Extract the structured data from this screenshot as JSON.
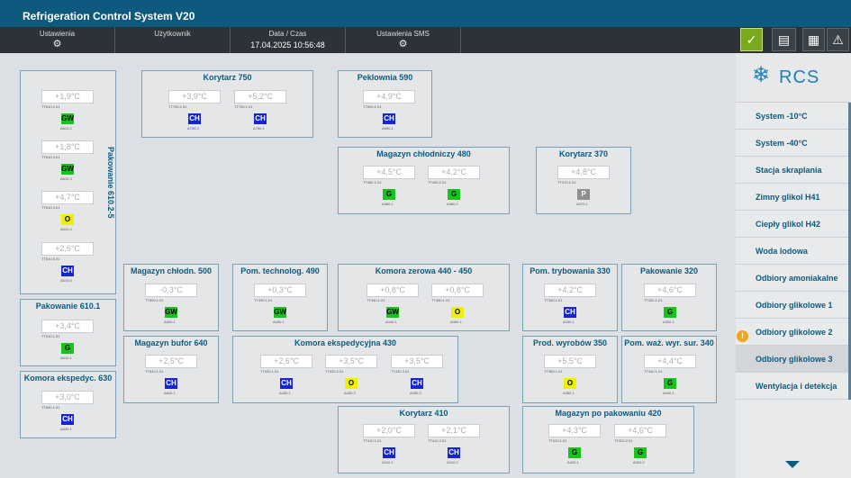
{
  "title": "Refrigeration Control System V20",
  "topbar": {
    "settings_label": "Ustawienia",
    "user_label": "Użytkownik",
    "datetime_label": "Data / Czas",
    "datetime_value": "17.04.2025 10:56:48",
    "sms_label": "Ustawienia SMS"
  },
  "logo_text": "RCS",
  "rooms": [
    {
      "id": "pak6102-5",
      "title": "Pakowanie 610.2-5",
      "readings": [
        {
          "value": "+1,9°C",
          "tag": "TT610.2.01",
          "status": "GW",
          "stag": "A610.2"
        },
        {
          "value": "+1,8°C",
          "tag": "TT610.3.01",
          "status": "GW",
          "stag": "A610.3"
        },
        {
          "value": "+4,7°C",
          "tag": "TT610.4.01",
          "status": "O",
          "stag": "A610.4"
        },
        {
          "value": "+2,6°C",
          "tag": "TT610.5.01",
          "status": "CH",
          "stag": "A610.5"
        }
      ]
    },
    {
      "id": "pak6101",
      "title": "Pakowanie 610.1",
      "readings": [
        {
          "value": "+3,4°C",
          "tag": "TT610.1.01",
          "status": "G",
          "stag": "A610.1"
        }
      ]
    },
    {
      "id": "kom630",
      "title": "Komora ekspedyc. 630",
      "readings": [
        {
          "value": "+3,0°C",
          "tag": "TT630.1.01",
          "status": "CH",
          "stag": "A630.1"
        }
      ]
    },
    {
      "id": "kor750",
      "title": "Korytarz 750",
      "readings": [
        {
          "value": "+3,9°C",
          "tag": "TT750.2.01",
          "status": "CH",
          "stag": "A750.2"
        },
        {
          "value": "+5,2°C",
          "tag": "TT750.1.01",
          "status": "CH",
          "stag": "A750.1"
        }
      ]
    },
    {
      "id": "pek590",
      "title": "Peklownia 590",
      "readings": [
        {
          "value": "+4,9°C",
          "tag": "TT590.1.01",
          "status": "CH",
          "stag": "A590.1"
        }
      ]
    },
    {
      "id": "mag480",
      "title": "Magazyn chłodniczy 480",
      "readings": [
        {
          "value": "+4,5°C",
          "tag": "TT480.1.01",
          "status": "G",
          "stag": "A480.1"
        },
        {
          "value": "+4,2°C",
          "tag": "TT480.2.01",
          "status": "G",
          "stag": "A480.2"
        }
      ]
    },
    {
      "id": "kor370",
      "title": "Korytarz 370",
      "readings": [
        {
          "value": "+4,8°C",
          "tag": "TT370.1.01",
          "status": "P",
          "stag": "A370.1"
        }
      ]
    },
    {
      "id": "mag500",
      "title": "Magazyn chłodn. 500",
      "readings": [
        {
          "value": "-0,3°C",
          "tag": "TT500.1.01",
          "status": "GW",
          "stag": "A500.1"
        }
      ]
    },
    {
      "id": "pom490",
      "title": "Pom. technolog. 490",
      "readings": [
        {
          "value": "+0,3°C",
          "tag": "TT490.1.01",
          "status": "GW",
          "stag": "A490.1"
        }
      ]
    },
    {
      "id": "kom440",
      "title": "Komora zerowa 440 - 450",
      "readings": [
        {
          "value": "+0,8°C",
          "tag": "TT440.1.01",
          "status": "GW",
          "stag": "A440.1"
        },
        {
          "value": "+0,8°C",
          "tag": "TT450.1.01",
          "status": "O",
          "stag": "A450.1"
        }
      ]
    },
    {
      "id": "pom330",
      "title": "Pom. trybowania 330",
      "readings": [
        {
          "value": "+4,2°C",
          "tag": "TT330.1.01",
          "status": "CH",
          "stag": "A330.1"
        }
      ]
    },
    {
      "id": "pak320",
      "title": "Pakowanie 320",
      "readings": [
        {
          "value": "+4,6°C",
          "tag": "TT320.1.01",
          "status": "G",
          "stag": "A320.1"
        }
      ]
    },
    {
      "id": "mag640",
      "title": "Magazyn bufor 640",
      "readings": [
        {
          "value": "+2,5°C",
          "tag": "TT640.1.01",
          "status": "CH",
          "stag": "A640.1"
        }
      ]
    },
    {
      "id": "kom430",
      "title": "Komora ekspedycyjna 430",
      "readings": [
        {
          "value": "+2,6°C",
          "tag": "TT430.1.01",
          "status": "CH",
          "stag": "A430.1"
        },
        {
          "value": "+3,5°C",
          "tag": "TT430.2.01",
          "status": "O",
          "stag": "A430.2"
        },
        {
          "value": "+3,5°C",
          "tag": "TT430.3.01",
          "status": "CH",
          "stag": "A430.3"
        }
      ]
    },
    {
      "id": "prod350",
      "title": "Prod. wyrobów 350",
      "readings": [
        {
          "value": "+5,5°C",
          "tag": "TT350.1.01",
          "status": "O",
          "stag": "A350.1"
        }
      ]
    },
    {
      "id": "pom340",
      "title": "Pom. waż. wyr. sur. 340",
      "readings": [
        {
          "value": "+4,4°C",
          "tag": "TT340.1.01",
          "status": "G",
          "stag": "A340.1"
        }
      ]
    },
    {
      "id": "kor410",
      "title": "Korytarz 410",
      "readings": [
        {
          "value": "+2,0°C",
          "tag": "TT410.1.01",
          "status": "CH",
          "stag": "A410.1"
        },
        {
          "value": "+2,1°C",
          "tag": "TT410.2.01",
          "status": "CH",
          "stag": "A410.2"
        }
      ]
    },
    {
      "id": "mag420",
      "title": "Magazyn po pakowaniu 420",
      "readings": [
        {
          "value": "+4,3°C",
          "tag": "TT420.1.01",
          "status": "G",
          "stag": "A420.1"
        },
        {
          "value": "+4,6°C",
          "tag": "TT420.2.01",
          "status": "G",
          "stag": "A420.2"
        }
      ]
    }
  ],
  "nav": [
    "System -10°C",
    "System -40°C",
    "Stacja skraplania",
    "Zimny glikol H41",
    "Ciepły glikol H42",
    "Woda lodowa",
    "Odbiory amoniakalne",
    "Odbiory glikolowe 1",
    "Odbiory glikolowe 2",
    "Odbiory glikolowe 3",
    "Wentylacja i detekcja"
  ],
  "nav_active": "Odbiory glikolowe 3",
  "nav_warning_item": "Odbiory glikolowe 2",
  "colors": {
    "accent": "#0e5a7e",
    "status_CH": "#1524d4",
    "status_G": "#19c41a",
    "status_O": "#f0f000",
    "status_P": "#8d8f91",
    "warning": "#f2a51f"
  }
}
